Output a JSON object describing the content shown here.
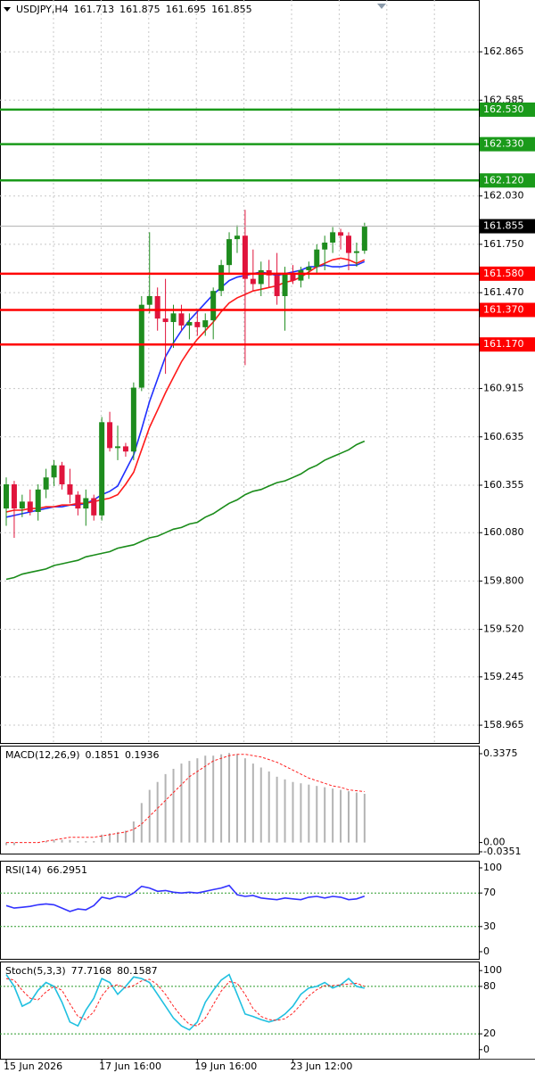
{
  "chart_data": [
    {
      "type": "candlestick",
      "title": "USDJPY,H4",
      "categories": [
        "15 Jun 2026",
        null,
        null,
        null,
        null,
        null,
        null,
        null,
        null,
        null,
        null,
        null,
        "17 Jun 16:00",
        null,
        null,
        null,
        null,
        null,
        null,
        null,
        null,
        null,
        null,
        null,
        "19 Jun 16:00",
        null,
        null,
        null,
        null,
        null,
        null,
        null,
        null,
        null,
        null,
        null,
        "23 Jun 12:00",
        null,
        null,
        null,
        null,
        null,
        null,
        null,
        null,
        null
      ],
      "open": [
        160.22,
        160.36,
        160.22,
        160.26,
        160.2,
        160.33,
        160.4,
        160.47,
        160.36,
        160.3,
        160.22,
        160.28,
        160.18,
        160.72,
        160.57,
        160.58,
        160.55,
        160.92,
        161.4,
        161.45,
        161.32,
        161.3,
        161.35,
        161.28,
        161.3,
        161.27,
        161.31,
        161.48,
        161.63,
        161.78,
        161.8,
        161.55,
        161.52,
        161.6,
        161.57,
        161.45,
        161.58,
        161.54,
        161.6,
        161.62,
        161.72,
        161.76,
        161.82,
        161.8,
        161.7,
        161.713
      ],
      "high": [
        160.4,
        160.38,
        160.3,
        160.33,
        160.36,
        160.45,
        160.5,
        160.49,
        160.45,
        160.32,
        160.33,
        160.3,
        160.75,
        160.78,
        160.7,
        160.6,
        160.95,
        161.45,
        161.82,
        161.5,
        161.55,
        161.4,
        161.4,
        161.35,
        161.36,
        161.35,
        161.5,
        161.66,
        161.82,
        161.86,
        161.95,
        161.72,
        161.65,
        161.66,
        161.7,
        161.62,
        161.63,
        161.62,
        161.65,
        161.75,
        161.8,
        161.85,
        161.84,
        161.82,
        161.76,
        161.875
      ],
      "low": [
        160.12,
        160.05,
        160.17,
        160.18,
        160.15,
        160.28,
        160.35,
        160.33,
        160.25,
        160.18,
        160.12,
        160.15,
        160.15,
        160.55,
        160.5,
        160.52,
        160.5,
        160.9,
        161.35,
        161.25,
        161.0,
        161.15,
        161.25,
        161.2,
        161.22,
        161.22,
        161.2,
        161.45,
        161.58,
        161.7,
        161.05,
        161.48,
        161.45,
        161.5,
        161.4,
        161.25,
        161.52,
        161.5,
        161.55,
        161.58,
        161.6,
        161.7,
        161.72,
        161.6,
        161.62,
        161.695
      ],
      "close": [
        160.36,
        160.22,
        160.26,
        160.2,
        160.33,
        160.4,
        160.47,
        160.36,
        160.3,
        160.22,
        160.28,
        160.18,
        160.72,
        160.57,
        160.58,
        160.55,
        160.92,
        161.4,
        161.45,
        161.32,
        161.3,
        161.35,
        161.28,
        161.3,
        161.27,
        161.31,
        161.48,
        161.63,
        161.78,
        161.8,
        161.55,
        161.52,
        161.6,
        161.57,
        161.45,
        161.58,
        161.54,
        161.6,
        161.62,
        161.72,
        161.76,
        161.82,
        161.8,
        161.7,
        161.71,
        161.855
      ],
      "up_color": "#1e8c1e",
      "down_color": "#e0143c",
      "series": [
        {
          "color": "#1f2fff",
          "values": [
            160.17,
            160.18,
            160.19,
            160.2,
            160.21,
            160.22,
            160.23,
            160.23,
            160.24,
            160.24,
            160.25,
            160.27,
            160.3,
            160.32,
            160.35,
            160.44,
            160.53,
            160.68,
            160.84,
            160.97,
            161.1,
            161.18,
            161.25,
            161.31,
            161.36,
            161.41,
            161.46,
            161.5,
            161.54,
            161.56,
            161.57,
            161.58,
            161.59,
            161.58,
            161.57,
            161.58,
            161.59,
            161.6,
            161.62,
            161.62,
            161.63,
            161.62,
            161.62,
            161.63,
            161.63,
            161.65
          ]
        },
        {
          "color": "#ff1a1a",
          "values": [
            160.2,
            160.21,
            160.21,
            160.22,
            160.22,
            160.23,
            160.23,
            160.24,
            160.24,
            160.25,
            160.25,
            160.26,
            160.27,
            160.28,
            160.3,
            160.36,
            160.43,
            160.56,
            160.69,
            160.79,
            160.89,
            160.98,
            161.07,
            161.14,
            161.2,
            161.25,
            161.3,
            161.36,
            161.41,
            161.44,
            161.46,
            161.48,
            161.49,
            161.5,
            161.51,
            161.53,
            161.54,
            161.56,
            161.59,
            161.62,
            161.64,
            161.66,
            161.67,
            161.66,
            161.64,
            161.66
          ]
        },
        {
          "color": "#1a8c1a",
          "values": [
            159.81,
            159.82,
            159.84,
            159.85,
            159.86,
            159.87,
            159.89,
            159.9,
            159.91,
            159.92,
            159.94,
            159.95,
            159.96,
            159.97,
            159.99,
            160.0,
            160.01,
            160.03,
            160.05,
            160.06,
            160.08,
            160.1,
            160.11,
            160.13,
            160.14,
            160.17,
            160.19,
            160.22,
            160.25,
            160.27,
            160.3,
            160.32,
            160.33,
            160.35,
            160.37,
            160.38,
            160.4,
            160.42,
            160.45,
            160.47,
            160.5,
            160.52,
            160.54,
            160.56,
            160.59,
            160.61
          ]
        }
      ],
      "levels": [
        {
          "value": 162.53,
          "label": "162.530",
          "color": "#1a9a1a"
        },
        {
          "value": 162.33,
          "label": "162.330",
          "color": "#1a9a1a"
        },
        {
          "value": 162.12,
          "label": "162.120",
          "color": "#1a9a1a"
        },
        {
          "value": 161.58,
          "label": "161.580",
          "color": "#ff0000"
        },
        {
          "value": 161.37,
          "label": "161.370",
          "color": "#ff0000"
        },
        {
          "value": 161.17,
          "label": "161.170",
          "color": "#ff0000"
        }
      ],
      "ylim": [
        158.862,
        163.165
      ],
      "yticks": [
        162.865,
        162.585,
        {
          "value": 162.03,
          "label": "162.030"
        },
        {
          "value": 161.75,
          "label": "161.750"
        },
        {
          "value": 161.47,
          "label": "161.470"
        },
        160.915,
        160.635,
        160.355,
        {
          "value": 160.08,
          "label": "160.080"
        },
        {
          "value": 159.8,
          "label": "159.800"
        },
        {
          "value": 159.52,
          "label": "159.520"
        },
        159.245,
        158.965
      ],
      "grid": true
    },
    {
      "type": "indicator",
      "title": "MACD(12,26,9)",
      "series": [
        {
          "style": "bar",
          "color": "#b4b4b4",
          "values": [
            -0.01,
            -0.01,
            0,
            0,
            0,
            0.005,
            0.01,
            0.01,
            0.01,
            0.005,
            0.005,
            0.005,
            0.03,
            0.035,
            0.04,
            0.045,
            0.08,
            0.15,
            0.2,
            0.23,
            0.26,
            0.28,
            0.3,
            0.31,
            0.32,
            0.33,
            0.33,
            0.335,
            0.34,
            0.335,
            0.32,
            0.3,
            0.285,
            0.27,
            0.25,
            0.24,
            0.23,
            0.225,
            0.22,
            0.215,
            0.21,
            0.205,
            0.2,
            0.195,
            0.19,
            0.1851
          ]
        },
        {
          "style": "dashed",
          "color": "#ff2020",
          "values": [
            0,
            0,
            0,
            0,
            0,
            0.005,
            0.01,
            0.015,
            0.02,
            0.02,
            0.02,
            0.02,
            0.025,
            0.03,
            0.035,
            0.04,
            0.05,
            0.07,
            0.1,
            0.13,
            0.16,
            0.19,
            0.22,
            0.25,
            0.27,
            0.29,
            0.31,
            0.32,
            0.33,
            0.335,
            0.335,
            0.33,
            0.325,
            0.315,
            0.305,
            0.29,
            0.275,
            0.26,
            0.245,
            0.235,
            0.225,
            0.215,
            0.21,
            0.2,
            0.197,
            0.1936
          ]
        }
      ],
      "ylim": [
        -0.042,
        0.368
      ],
      "yticks": [
        0.3375,
        {
          "value": 0,
          "label": "0.00"
        },
        -0.0351
      ]
    },
    {
      "type": "indicator",
      "title": "RSI(14)",
      "series": [
        {
          "style": "line",
          "color": "#3333ff",
          "values": [
            55,
            52,
            53,
            54,
            56,
            57,
            56,
            52,
            48,
            51,
            50,
            55,
            65,
            63,
            66,
            65,
            70,
            78,
            76,
            72,
            73,
            71,
            70,
            71,
            70,
            72,
            74,
            76,
            79,
            68,
            66,
            67,
            64,
            63,
            62,
            64,
            63,
            62,
            65,
            66,
            64,
            66,
            65,
            62,
            63,
            66.2951
          ]
        }
      ],
      "levels": [
        70,
        30
      ],
      "ylim": [
        -8.5,
        108.5
      ],
      "yticks": [
        100,
        70,
        30,
        0
      ]
    },
    {
      "type": "indicator",
      "title": "Stoch(5,3,3)",
      "series": [
        {
          "style": "line",
          "color": "#20c0e0",
          "values": [
            95,
            80,
            55,
            60,
            75,
            85,
            80,
            60,
            35,
            30,
            50,
            65,
            90,
            85,
            70,
            80,
            92,
            90,
            85,
            70,
            55,
            40,
            30,
            25,
            35,
            60,
            75,
            88,
            95,
            70,
            45,
            42,
            38,
            35,
            38,
            45,
            55,
            70,
            78,
            80,
            85,
            78,
            82,
            90,
            80,
            77.7168
          ]
        },
        {
          "style": "dashed",
          "color": "#ff2020",
          "values": [
            90,
            88,
            75,
            65,
            63,
            73,
            80,
            75,
            58,
            42,
            38,
            48,
            68,
            80,
            82,
            78,
            81,
            87,
            89,
            82,
            70,
            55,
            42,
            32,
            30,
            40,
            57,
            74,
            86,
            84,
            70,
            52,
            42,
            38,
            37,
            39,
            46,
            57,
            68,
            76,
            81,
            81,
            82,
            83,
            84,
            80.1587
          ]
        }
      ],
      "levels": [
        80,
        20
      ],
      "ylim": [
        -11.5,
        111.5
      ],
      "yticks": [
        100,
        80,
        20,
        0
      ]
    }
  ]
}
